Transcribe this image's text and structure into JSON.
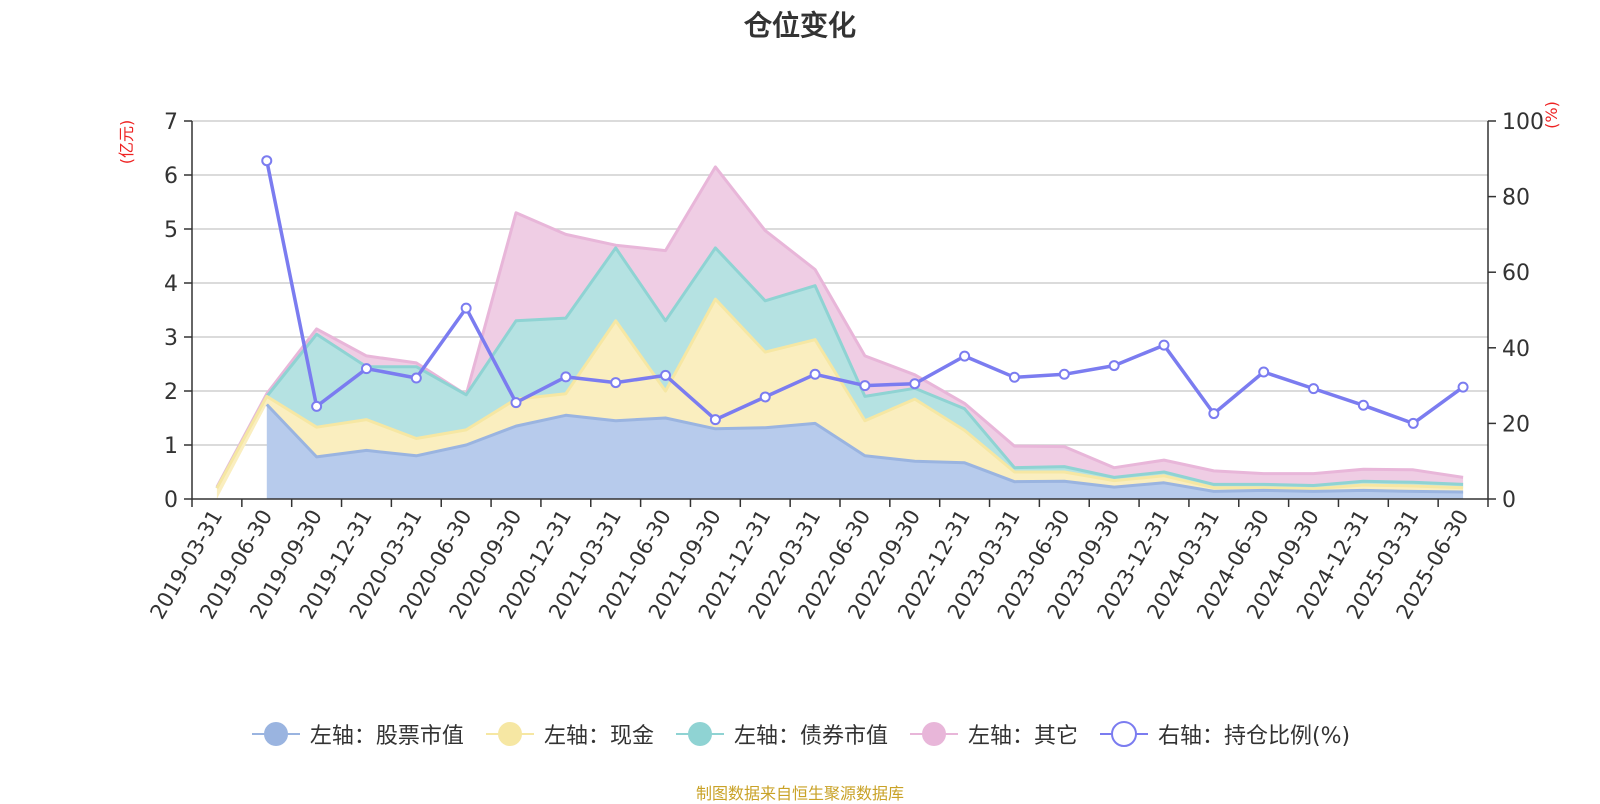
{
  "title": "仓位变化",
  "source_note": "制图数据来自恒生聚源数据库",
  "chart_data": {
    "type": "area",
    "x": [
      "2019-03-31",
      "2019-06-30",
      "2019-09-30",
      "2019-12-31",
      "2020-03-31",
      "2020-06-30",
      "2020-09-30",
      "2020-12-31",
      "2021-03-31",
      "2021-06-30",
      "2021-09-30",
      "2021-12-31",
      "2022-03-31",
      "2022-06-30",
      "2022-09-30",
      "2022-12-31",
      "2023-03-31",
      "2023-06-30",
      "2023-09-30",
      "2023-12-31",
      "2024-03-31",
      "2024-06-30",
      "2024-09-30",
      "2024-12-31",
      "2025-03-31",
      "2025-06-30"
    ],
    "left_axis": {
      "unit": "(亿元)",
      "ylim": [
        0,
        7
      ],
      "ticks": [
        "0",
        "1",
        "2",
        "3",
        "4",
        "5",
        "6",
        "7"
      ]
    },
    "right_axis": {
      "unit": "(%)",
      "ylim": [
        0,
        100
      ],
      "ticks": [
        "0",
        "20",
        "40",
        "60",
        "80",
        "100"
      ]
    },
    "series": [
      {
        "name": "左轴：股票市值",
        "axis": "left",
        "stacked": true,
        "color": "#9ab4e0",
        "fill": "#b7cbec",
        "values": [
          null,
          1.75,
          0.78,
          0.9,
          0.8,
          1.0,
          1.35,
          1.55,
          1.45,
          1.5,
          1.3,
          1.32,
          1.4,
          0.8,
          0.7,
          0.67,
          0.32,
          0.33,
          0.22,
          0.3,
          0.14,
          0.16,
          0.14,
          0.16,
          0.14,
          0.13
        ]
      },
      {
        "name": "左轴：现金",
        "axis": "left",
        "stacked": true,
        "color": "#f6e7a3",
        "fill": "#faeebf",
        "values": [
          0.2,
          0.15,
          0.55,
          0.57,
          0.32,
          0.28,
          0.5,
          0.4,
          1.85,
          0.5,
          2.4,
          1.4,
          1.55,
          0.65,
          1.15,
          0.6,
          0.18,
          0.17,
          0.12,
          0.13,
          0.07,
          0.05,
          0.05,
          0.1,
          0.1,
          0.08
        ]
      },
      {
        "name": "左轴：债券市值",
        "axis": "left",
        "stacked": true,
        "color": "#8fd3d3",
        "fill": "#b5e2e2",
        "values": [
          0.0,
          0.0,
          1.72,
          0.98,
          1.33,
          0.65,
          1.45,
          1.4,
          1.35,
          1.3,
          0.95,
          0.95,
          1.0,
          0.45,
          0.2,
          0.4,
          0.08,
          0.1,
          0.06,
          0.07,
          0.06,
          0.06,
          0.06,
          0.07,
          0.07,
          0.06
        ]
      },
      {
        "name": "左轴：其它",
        "axis": "left",
        "stacked": true,
        "color": "#e8b6d9",
        "fill": "#efcde4",
        "values": [
          0.02,
          0.05,
          0.1,
          0.2,
          0.07,
          0.0,
          2.0,
          1.55,
          0.05,
          1.3,
          1.5,
          1.3,
          0.3,
          0.75,
          0.25,
          0.1,
          0.4,
          0.37,
          0.18,
          0.22,
          0.25,
          0.2,
          0.22,
          0.22,
          0.23,
          0.13
        ]
      },
      {
        "name": "右轴：持仓比例(%)",
        "axis": "right",
        "stacked": false,
        "color": "#7b7cf0",
        "fill": "none",
        "values": [
          null,
          89.5,
          24.5,
          34.5,
          32,
          50.5,
          25.5,
          32.3,
          30.8,
          32.7,
          21,
          27,
          33,
          30,
          30.5,
          37.8,
          32.2,
          33,
          35.3,
          40.7,
          22.6,
          33.6,
          29.2,
          24.8,
          20,
          29.6
        ]
      }
    ],
    "grid": true,
    "legend_position": "bottom"
  }
}
